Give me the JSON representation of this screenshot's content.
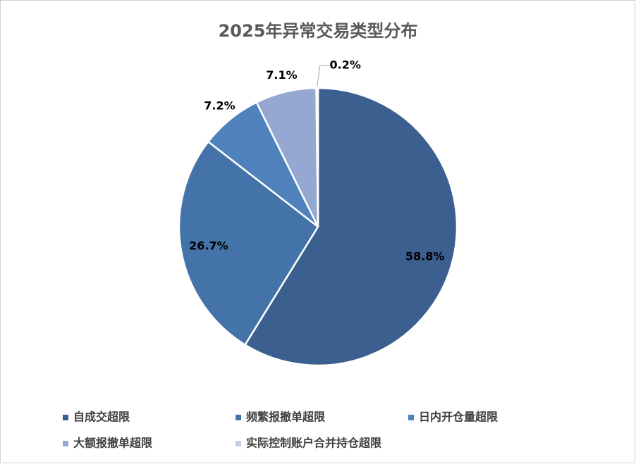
{
  "chart_data": {
    "type": "pie",
    "title": "2025年异常交易类型分布",
    "categories": [
      "自成交超限",
      "频繁报撤单超限",
      "日内开仓量超限",
      "大额报撤单超限",
      "实际控制账户合并持仓超限"
    ],
    "values": [
      58.8,
      26.7,
      7.2,
      7.1,
      0.2
    ],
    "value_labels": [
      "58.8%",
      "26.7%",
      "7.2%",
      "7.1%",
      "0.2%"
    ],
    "colors": [
      "#3b5f8e",
      "#4473a9",
      "#4f81bd",
      "#94a8d2",
      "#c3cee6"
    ],
    "legend": "bottom"
  }
}
